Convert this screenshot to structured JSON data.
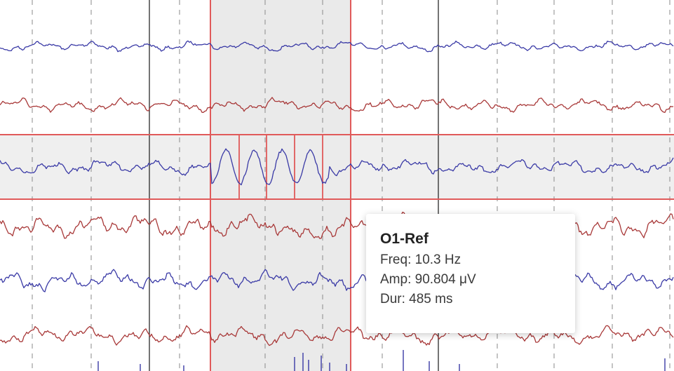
{
  "viewer": {
    "channels": [
      {
        "color": "#3a3aa6"
      },
      {
        "color": "#a83838"
      },
      {
        "color": "#3a3aa6",
        "selected": true
      },
      {
        "color": "#a83838"
      },
      {
        "color": "#3a3aa6"
      },
      {
        "color": "#a83838"
      }
    ],
    "colors": {
      "selection_line": "#e05a5a",
      "selection_fill": "#e3e3e3",
      "selected_row_fill": "#ebebeb",
      "second_grid": "#2a2a2a",
      "subdivision_grid": "#8a8a8a",
      "event_marker": "#3a3aa6"
    }
  },
  "tooltip": {
    "channel": "O1-Ref",
    "freq": "Freq: 10.3 Hz",
    "amp": "Amp: 90.804 μV",
    "dur": "Dur: 485 ms"
  }
}
